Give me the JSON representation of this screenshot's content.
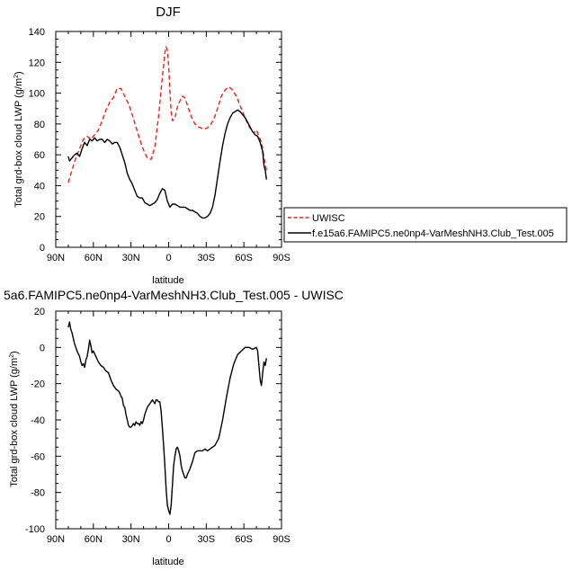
{
  "chart_data": [
    {
      "type": "line",
      "title": "DJF",
      "xlabel": "latitude",
      "ylabel": "Total grd-box cloud LWP (g/m",
      "ylabel_sup": "2",
      "ylabel_close": ")",
      "xlim": [
        90,
        -90
      ],
      "ylim": [
        0,
        140
      ],
      "xticks": [
        90,
        60,
        30,
        0,
        -30,
        -60,
        -90
      ],
      "xticklabels": [
        "90N",
        "60N",
        "30N",
        "0",
        "30S",
        "60S",
        "90S"
      ],
      "yticks": [
        0,
        20,
        40,
        60,
        80,
        100,
        120,
        140
      ],
      "yticklabels": [
        "0",
        "20",
        "40",
        "60",
        "80",
        "100",
        "120",
        "140"
      ],
      "legend": "outside-right",
      "series": [
        {
          "name": "UWISC",
          "color": "#e8241c",
          "dash": "dashed",
          "x": [
            80,
            77,
            74,
            71,
            68,
            65,
            62,
            59,
            56,
            53,
            50,
            47,
            44,
            41,
            38,
            35,
            32,
            29,
            26,
            23,
            20,
            17,
            14,
            11,
            8,
            5,
            3,
            2,
            1,
            0,
            -1,
            -2,
            -3,
            -5,
            -7,
            -9,
            -11,
            -13,
            -15,
            -18,
            -21,
            -24,
            -27,
            -30,
            -33,
            -36,
            -39,
            -42,
            -45,
            -48,
            -51,
            -54,
            -57,
            -60,
            -63,
            -66,
            -68,
            -70,
            -72,
            -74,
            -75,
            -76,
            -77,
            -78
          ],
          "y": [
            42,
            50,
            58,
            64,
            70,
            72,
            70,
            73,
            76,
            82,
            89,
            94,
            97,
            103,
            103,
            98,
            93,
            86,
            78,
            70,
            63,
            58,
            57,
            65,
            85,
            110,
            126,
            130,
            128,
            118,
            102,
            88,
            82,
            84,
            91,
            95,
            98,
            97,
            92,
            85,
            80,
            78,
            77,
            77,
            79,
            83,
            90,
            98,
            102,
            104,
            102,
            98,
            92,
            86,
            80,
            76,
            74,
            76,
            72,
            68,
            64,
            58,
            54,
            50
          ]
        },
        {
          "name": "f.e15a6.FAMIPC5.ne0np4-VarMeshNH3.Club_Test.005",
          "color": "#000000",
          "dash": "solid",
          "x": [
            80,
            79,
            77,
            75,
            73,
            71,
            69,
            67,
            65,
            63,
            61,
            59,
            57,
            55,
            53,
            51,
            49,
            47,
            45,
            43,
            41,
            39,
            37,
            35,
            33,
            31,
            29,
            27,
            25,
            23,
            21,
            19,
            17,
            15,
            13,
            11,
            9,
            7,
            5,
            3,
            1,
            -1,
            -3,
            -5,
            -7,
            -9,
            -11,
            -13,
            -15,
            -17,
            -19,
            -21,
            -23,
            -25,
            -27,
            -29,
            -31,
            -33,
            -35,
            -37,
            -39,
            -41,
            -43,
            -45,
            -47,
            -49,
            -51,
            -53,
            -55,
            -57,
            -59,
            -61,
            -63,
            -65,
            -67,
            -69,
            -71,
            -73,
            -75,
            -76,
            -77,
            -78
          ],
          "y": [
            59,
            56,
            58,
            60,
            61,
            59,
            64,
            68,
            66,
            70,
            69,
            71,
            69,
            70,
            70,
            68,
            70,
            69,
            67,
            68,
            68,
            65,
            60,
            55,
            48,
            44,
            41,
            37,
            33,
            32,
            32,
            29,
            28,
            27,
            28,
            29,
            31,
            35,
            38,
            37,
            30,
            26,
            28,
            28,
            27,
            26,
            26,
            26,
            25,
            24,
            24,
            23,
            22,
            20,
            19,
            19,
            20,
            22,
            26,
            34,
            45,
            56,
            66,
            74,
            80,
            84,
            87,
            88,
            89,
            88,
            86,
            84,
            81,
            78,
            75,
            73,
            72,
            68,
            62,
            53,
            50,
            44
          ]
        }
      ]
    },
    {
      "type": "line",
      "title": "5a6.FAMIPC5.ne0np4-VarMeshNH3.Club_Test.005 - UWISC",
      "xlabel": "latitude",
      "ylabel": "Total grd-box cloud LWP (g/m",
      "ylabel_sup": "2",
      "ylabel_close": ")",
      "xlim": [
        90,
        -90
      ],
      "ylim": [
        -100,
        20
      ],
      "xticks": [
        90,
        60,
        30,
        0,
        -30,
        -60,
        -90
      ],
      "xticklabels": [
        "90N",
        "60N",
        "30N",
        "0",
        "30S",
        "60S",
        "90S"
      ],
      "yticks": [
        -100,
        -80,
        -60,
        -40,
        -20,
        0,
        20
      ],
      "yticklabels": [
        "-100",
        "-80",
        "-60",
        "-40",
        "-20",
        "0",
        "20"
      ],
      "series": [
        {
          "color": "#000000",
          "dash": "solid",
          "x": [
            80,
            79,
            78,
            77,
            75,
            73,
            71,
            70,
            69,
            68,
            67,
            66,
            65,
            64,
            63,
            62,
            61,
            60,
            58,
            56,
            54,
            52,
            50,
            48,
            46,
            44,
            42,
            40,
            39,
            38,
            37,
            36,
            35,
            34,
            33,
            32,
            31,
            30,
            29,
            28,
            27,
            26,
            25,
            24,
            23,
            22,
            21,
            20,
            19,
            18,
            17,
            16,
            15,
            14,
            13,
            12,
            11,
            10,
            9,
            8,
            7,
            6,
            5,
            4,
            3,
            2,
            1,
            0,
            -1,
            -2,
            -3,
            -4,
            -5,
            -6,
            -7,
            -8,
            -9,
            -10,
            -11,
            -12,
            -13,
            -14,
            -15,
            -17,
            -19,
            -21,
            -23,
            -25,
            -27,
            -29,
            -31,
            -33,
            -35,
            -37,
            -40,
            -43,
            -46,
            -49,
            -52,
            -55,
            -58,
            -61,
            -64,
            -67,
            -70,
            -71,
            -72,
            -73,
            -74,
            -75,
            -76,
            -77,
            -78
          ],
          "y": [
            11,
            14,
            10,
            8,
            2,
            -2,
            -5,
            -8,
            -10,
            -9,
            -11,
            -7,
            -5,
            -1,
            4,
            1,
            -3,
            -2,
            -5,
            -8,
            -10,
            -11,
            -13,
            -14,
            -18,
            -21,
            -23,
            -24,
            -25,
            -27,
            -28,
            -32,
            -33,
            -37,
            -40,
            -43,
            -44,
            -44,
            -43,
            -42,
            -43,
            -41,
            -42,
            -42,
            -43,
            -41,
            -42,
            -40,
            -37,
            -35,
            -33,
            -32,
            -31,
            -30,
            -29,
            -30,
            -31,
            -29,
            -29,
            -30,
            -30,
            -35,
            -44,
            -54,
            -65,
            -78,
            -87,
            -90,
            -92,
            -87,
            -76,
            -65,
            -60,
            -56,
            -55,
            -57,
            -60,
            -65,
            -68,
            -70,
            -72,
            -72,
            -70,
            -67,
            -63,
            -58,
            -57,
            -57,
            -57,
            -56,
            -57,
            -56,
            -55,
            -54,
            -50,
            -40,
            -28,
            -17,
            -9,
            -4,
            -2,
            0,
            0,
            -1,
            0,
            -2,
            -10,
            -18,
            -21,
            -14,
            -8,
            -10,
            -6
          ]
        }
      ]
    }
  ]
}
